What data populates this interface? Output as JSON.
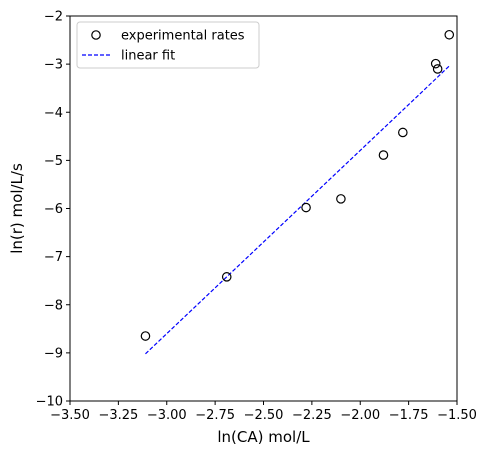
{
  "chart_data": {
    "type": "scatter",
    "xlabel": "ln(CA) mol/L",
    "ylabel": "ln(r) mol/L/s",
    "xlim": [
      -3.5,
      -1.5
    ],
    "ylim": [
      -10,
      -2
    ],
    "xticks": [
      -3.5,
      -3.25,
      -3.0,
      -2.75,
      -2.5,
      -2.25,
      -2.0,
      -1.75,
      -1.5
    ],
    "xtick_labels": [
      "−3.50",
      "−3.25",
      "−3.00",
      "−2.75",
      "−2.50",
      "−2.25",
      "−2.00",
      "−1.75",
      "−1.50"
    ],
    "yticks": [
      -10,
      -9,
      -8,
      -7,
      -6,
      -5,
      -4,
      -3,
      -2
    ],
    "ytick_labels": [
      "−10",
      "−9",
      "−8",
      "−7",
      "−6",
      "−5",
      "−4",
      "−3",
      "−2"
    ],
    "legend_position": "top-left",
    "grid": false,
    "series": [
      {
        "name": "experimental rates",
        "kind": "scatter",
        "marker": "open-circle",
        "color": "#000000",
        "x": [
          -3.11,
          -2.69,
          -2.28,
          -2.1,
          -1.88,
          -1.78,
          -1.61,
          -1.6,
          -1.54
        ],
        "y": [
          -8.65,
          -7.42,
          -5.98,
          -5.8,
          -4.89,
          -4.42,
          -2.99,
          -3.1,
          -2.39
        ]
      },
      {
        "name": "linear fit",
        "kind": "line",
        "style": "dashed",
        "color": "#0000ff",
        "x": [
          -3.11,
          -1.54
        ],
        "y": [
          -9.02,
          -3.04
        ]
      }
    ]
  }
}
